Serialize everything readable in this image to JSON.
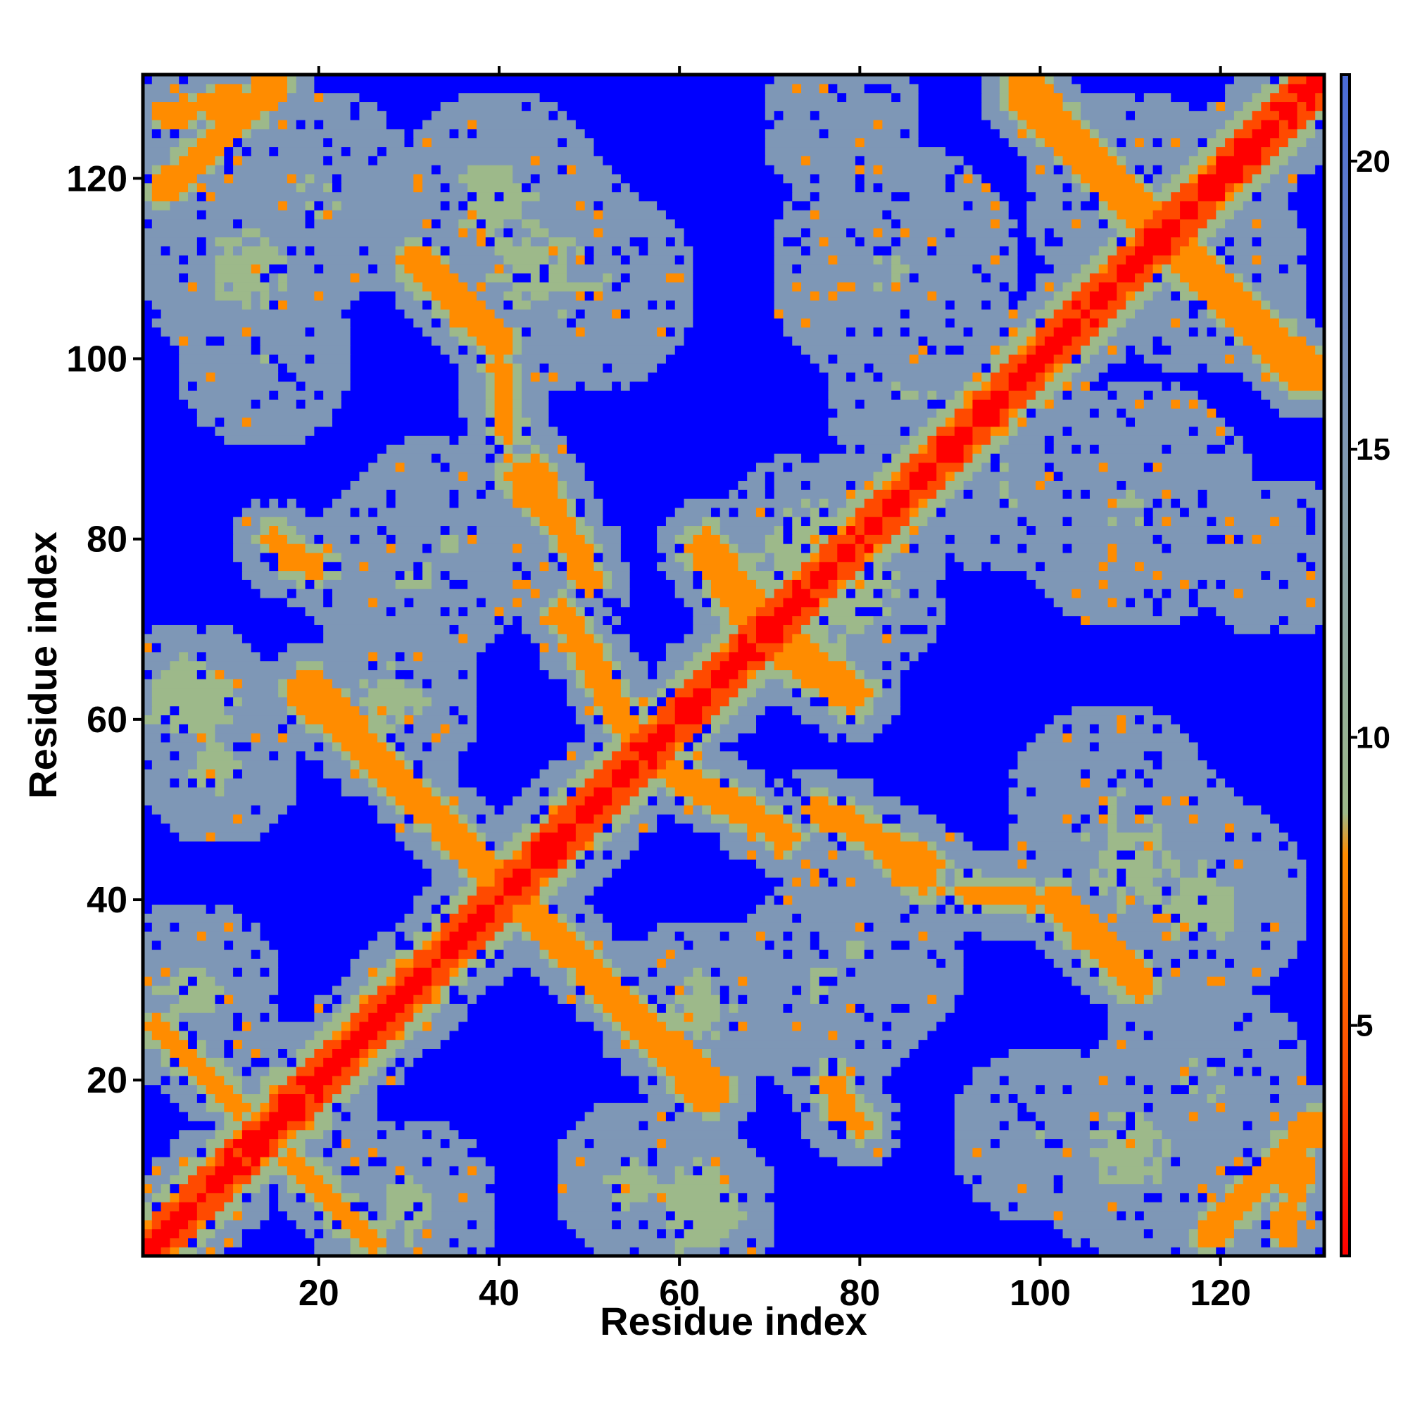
{
  "chart_data": {
    "type": "heatmap",
    "title": "",
    "xlabel": "Residue index",
    "ylabel": "Residue index",
    "xlim": [
      1,
      131
    ],
    "ylim": [
      1,
      131
    ],
    "n_residues": 131,
    "x_ticks": [
      20,
      40,
      60,
      80,
      100,
      120
    ],
    "y_ticks": [
      20,
      40,
      60,
      80,
      100,
      120
    ],
    "tick_labels": [
      "20",
      "40",
      "60",
      "80",
      "100",
      "120"
    ],
    "colorbar": {
      "range": [
        1,
        21.5
      ],
      "ticks": [
        5,
        10,
        15,
        20
      ],
      "tick_labels": [
        "5",
        "10",
        "15",
        "20"
      ],
      "placement": "right",
      "colors": {
        "close": "#ff0000",
        "near": "#ff8c00",
        "mid": "#9db98a",
        "far": "#7e97b6",
        "background": "#0000ff"
      }
    },
    "matrix_description": "pairwise residue distance map (symmetric), values capped at 21.5",
    "contact_bands": [
      {
        "from": [
          1,
          1
        ],
        "to": [
          131,
          131
        ],
        "value": 2,
        "width": 2.2
      },
      {
        "from": [
          2,
          26
        ],
        "to": [
          11,
          17
        ],
        "value": 6,
        "width": 1.4
      },
      {
        "from": [
          18,
          10
        ],
        "to": [
          26,
          2
        ],
        "value": 6,
        "width": 1.3
      },
      {
        "from": [
          19,
          64
        ],
        "to": [
          40,
          42
        ],
        "value": 6,
        "width": 1.6
      },
      {
        "from": [
          42,
          41
        ],
        "to": [
          63,
          18
        ],
        "value": 6,
        "width": 1.6
      },
      {
        "from": [
          3,
          127
        ],
        "to": [
          15,
          130
        ],
        "value": 7,
        "width": 1.5
      },
      {
        "from": [
          30,
          111
        ],
        "to": [
          40,
          101
        ],
        "value": 6,
        "width": 1.3
      },
      {
        "from": [
          40,
          97
        ],
        "to": [
          41,
          94
        ],
        "value": 7,
        "width": 1.0
      },
      {
        "from": [
          44,
          88
        ],
        "to": [
          50,
          75
        ],
        "value": 6,
        "width": 1.4
      },
      {
        "from": [
          47,
          72
        ],
        "to": [
          55,
          58
        ],
        "value": 6,
        "width": 1.4
      },
      {
        "from": [
          62,
          79
        ],
        "to": [
          69,
          68
        ],
        "value": 6,
        "width": 1.2
      },
      {
        "from": [
          66,
          51
        ],
        "to": [
          72,
          47
        ],
        "value": 6,
        "width": 1.3
      },
      {
        "from": [
          68,
          72
        ],
        "to": [
          80,
          63
        ],
        "value": 6,
        "width": 1.2
      },
      {
        "from": [
          79,
          49
        ],
        "to": [
          87,
          42
        ],
        "value": 6,
        "width": 1.3
      },
      {
        "from": [
          92,
          41
        ],
        "to": [
          99,
          40
        ],
        "value": 6,
        "width": 1.0
      },
      {
        "from": [
          102,
          40
        ],
        "to": [
          111,
          31
        ],
        "value": 6,
        "width": 1.5
      },
      {
        "from": [
          98,
          131
        ],
        "to": [
          112,
          116
        ],
        "value": 6,
        "width": 1.6
      },
      {
        "from": [
          115,
          112
        ],
        "to": [
          129,
          98
        ],
        "value": 6,
        "width": 1.6
      },
      {
        "from": [
          119,
          3
        ],
        "to": [
          130,
          15
        ],
        "value": 6,
        "width": 1.5
      },
      {
        "from": [
          77,
          20
        ],
        "to": [
          78,
          16
        ],
        "value": 6,
        "width": 1.0
      },
      {
        "from": [
          15,
          80
        ],
        "to": [
          19,
          77
        ],
        "value": 6,
        "width": 1.0
      }
    ],
    "proximity_blobs": [
      {
        "center": [
          18,
          18
        ],
        "radius": 9,
        "value": 11
      },
      {
        "center": [
          30,
          6
        ],
        "radius": 10,
        "value": 12
      },
      {
        "center": [
          9,
          55
        ],
        "radius": 9,
        "value": 12
      },
      {
        "center": [
          62,
          28
        ],
        "radius": 10,
        "value": 12
      },
      {
        "center": [
          62,
          6
        ],
        "radius": 9,
        "value": 11
      },
      {
        "center": [
          30,
          76
        ],
        "radius": 12,
        "value": 13
      },
      {
        "center": [
          76,
          76
        ],
        "radius": 14,
        "value": 11
      },
      {
        "center": [
          40,
          118
        ],
        "radius": 12,
        "value": 12
      },
      {
        "center": [
          12,
          110
        ],
        "radius": 12,
        "value": 12
      },
      {
        "center": [
          50,
          108
        ],
        "radius": 12,
        "value": 13
      },
      {
        "center": [
          110,
          118
        ],
        "radius": 12,
        "value": 12
      },
      {
        "center": [
          110,
          44
        ],
        "radius": 14,
        "value": 12
      },
      {
        "center": [
          118,
          20
        ],
        "radius": 12,
        "value": 13
      },
      {
        "center": [
          84,
          110
        ],
        "radius": 14,
        "value": 13
      },
      {
        "center": [
          96,
          86
        ],
        "radius": 10,
        "value": 13
      },
      {
        "center": [
          126,
          78
        ],
        "radius": 9,
        "value": 14
      },
      {
        "center": [
          80,
          34
        ],
        "radius": 12,
        "value": 13
      },
      {
        "center": [
          100,
          14
        ],
        "radius": 10,
        "value": 14
      }
    ]
  }
}
